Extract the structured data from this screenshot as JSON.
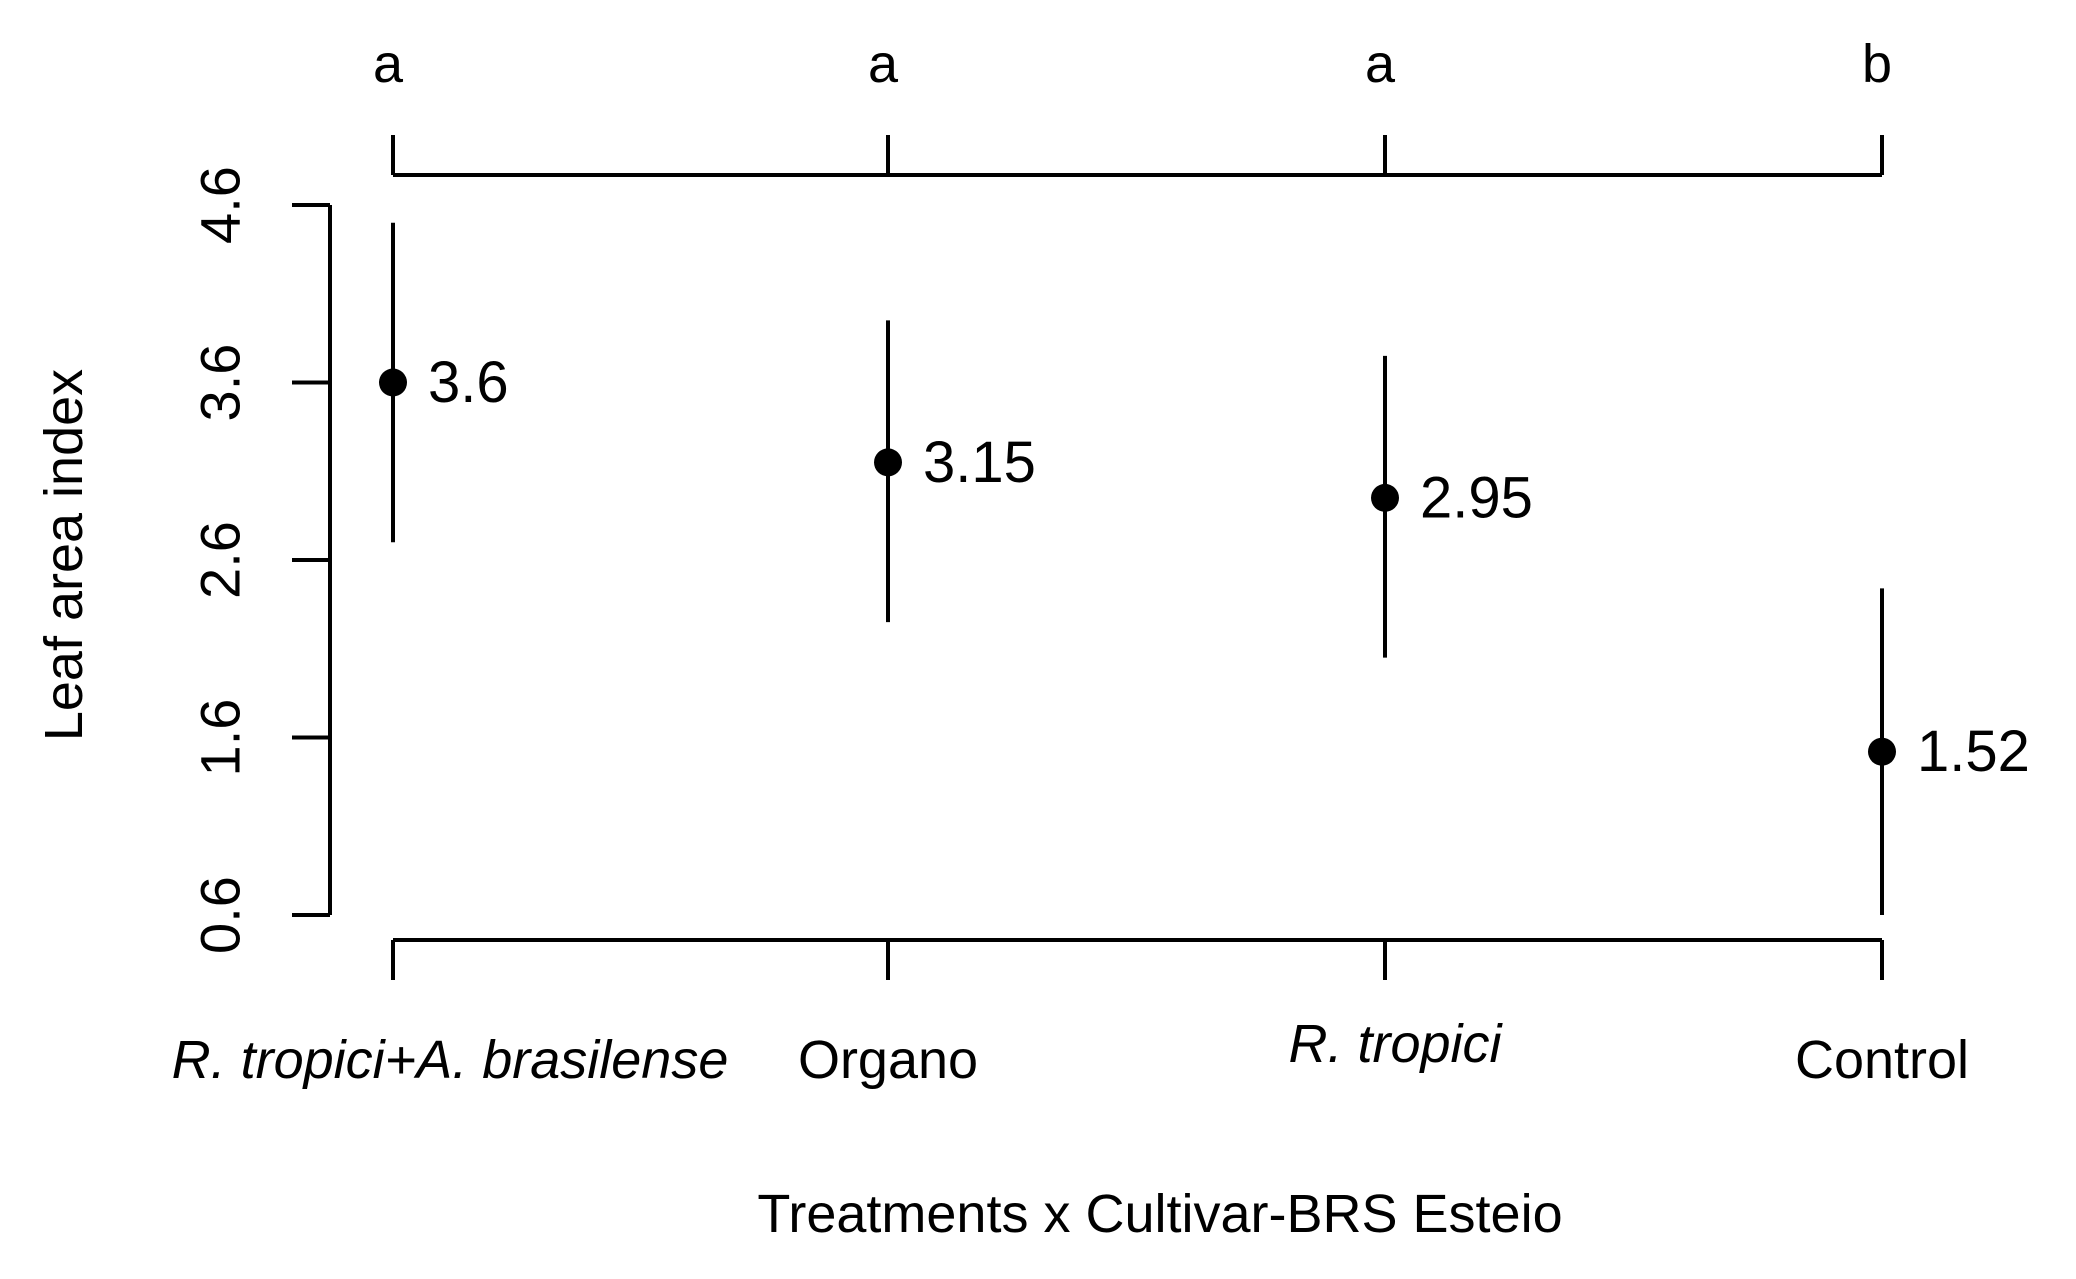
{
  "chart_data": {
    "type": "scatter",
    "subtype": "point-with-error-bars",
    "title": "",
    "xlabel": "Treatments x Cultivar-BRS Esteio",
    "ylabel": "Leaf area index",
    "ylim": [
      0.6,
      4.6
    ],
    "y_ticks": [
      "0.6",
      "1.6",
      "2.6",
      "3.6",
      "4.6"
    ],
    "categories": [
      "R. tropici+A. brasilense",
      "Organo",
      "R. tropici",
      "Control"
    ],
    "category_italic": [
      true,
      false,
      true,
      false
    ],
    "values": [
      3.6,
      3.15,
      2.95,
      1.52
    ],
    "value_labels": [
      "3.6",
      "3.15",
      "2.95",
      "1.52"
    ],
    "error_low": [
      2.7,
      2.25,
      2.05,
      0.6
    ],
    "error_high": [
      4.5,
      3.95,
      3.75,
      2.44
    ],
    "significance_letters": [
      "a",
      "a",
      "a",
      "b"
    ],
    "grid": false,
    "legend": false
  }
}
